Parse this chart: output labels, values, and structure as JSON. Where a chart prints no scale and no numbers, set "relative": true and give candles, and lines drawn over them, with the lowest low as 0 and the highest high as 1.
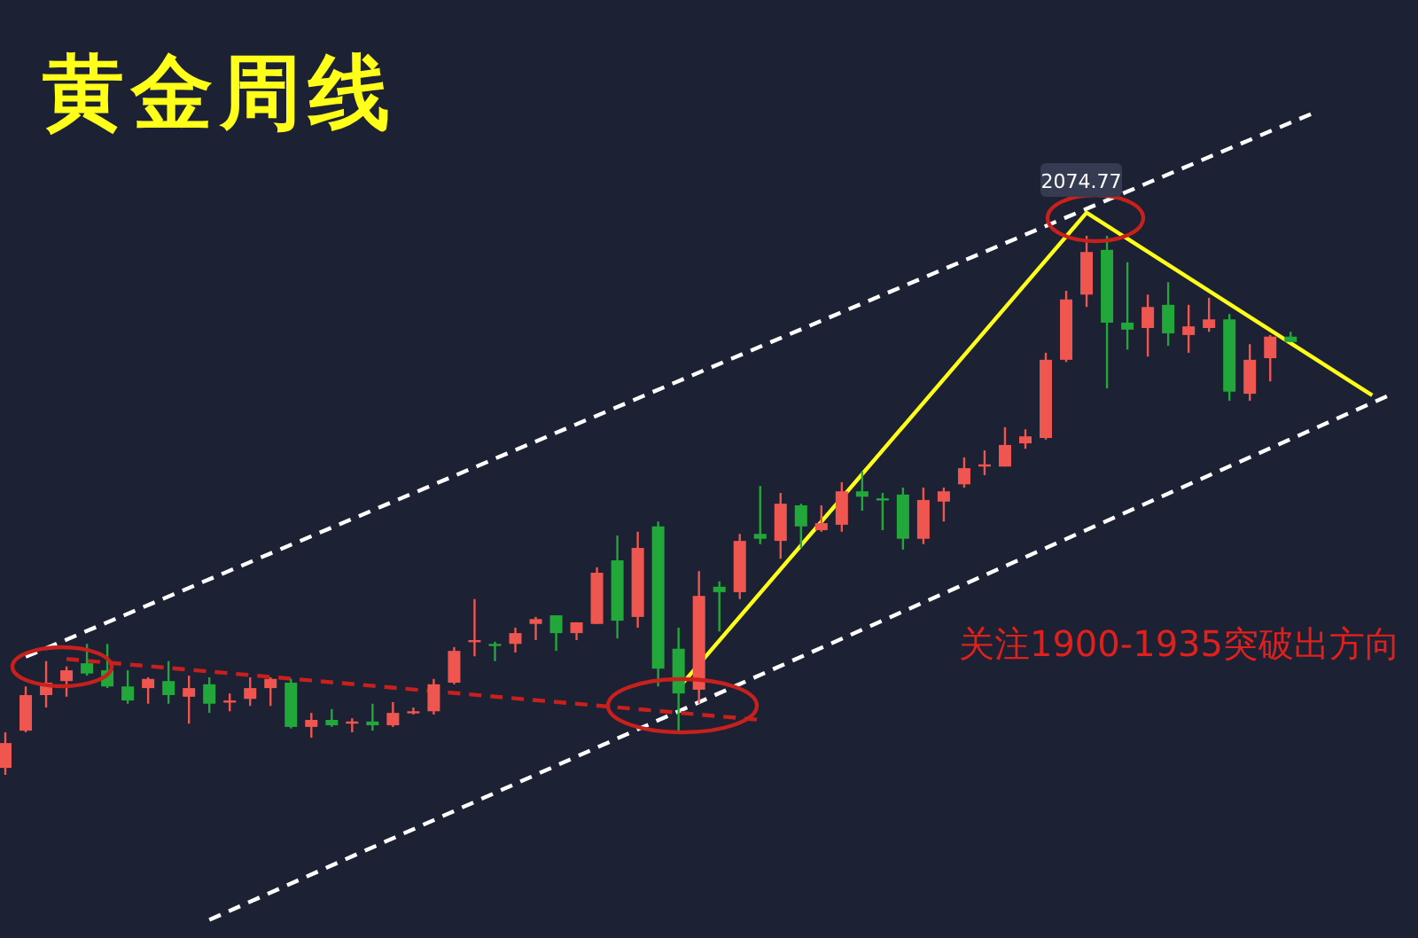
{
  "chart_data": {
    "type": "candlestick",
    "title": "黄金周线",
    "relative": true,
    "categories": [
      null,
      null,
      null,
      null,
      null,
      null,
      null,
      null,
      null,
      null,
      null,
      null,
      null,
      null,
      null,
      null,
      null,
      null,
      null,
      null,
      null,
      null,
      null,
      null,
      null,
      null,
      null,
      null,
      null,
      null,
      null,
      null,
      null,
      null,
      null,
      null,
      null,
      null,
      null,
      null,
      null,
      null,
      null,
      null,
      null,
      null,
      null,
      null,
      null,
      null,
      null,
      null,
      null,
      null,
      null,
      null,
      null,
      null,
      null,
      null,
      null,
      null,
      null,
      null,
      null,
      null,
      null,
      null,
      null
    ],
    "ohlc": [
      [
        0.013,
        0.079,
        0,
        0.059
      ],
      [
        0.082,
        0.164,
        0.079,
        0.148
      ],
      [
        0.148,
        0.211,
        0.125,
        0.171
      ],
      [
        0.174,
        0.201,
        0.145,
        0.194
      ],
      [
        0.207,
        0.243,
        0.184,
        0.188
      ],
      [
        0.194,
        0.243,
        0.161,
        0.164
      ],
      [
        0.164,
        0.194,
        0.132,
        0.138
      ],
      [
        0.161,
        0.181,
        0.132,
        0.178
      ],
      [
        0.174,
        0.211,
        0.132,
        0.148
      ],
      [
        0.145,
        0.184,
        0.095,
        0.161
      ],
      [
        0.168,
        0.181,
        0.115,
        0.132
      ],
      [
        0.135,
        0.151,
        0.118,
        0.138
      ],
      [
        0.141,
        0.181,
        0.128,
        0.161
      ],
      [
        0.161,
        0.181,
        0.128,
        0.178
      ],
      [
        0.171,
        0.178,
        0.086,
        0.089
      ],
      [
        0.089,
        0.115,
        0.069,
        0.102
      ],
      [
        0.102,
        0.122,
        0.089,
        0.092
      ],
      [
        0.095,
        0.105,
        0.079,
        0.099
      ],
      [
        0.099,
        0.132,
        0.082,
        0.092
      ],
      [
        0.092,
        0.135,
        0.089,
        0.115
      ],
      [
        0.115,
        0.125,
        0.112,
        0.118
      ],
      [
        0.118,
        0.178,
        0.112,
        0.168
      ],
      [
        0.171,
        0.237,
        0.168,
        0.23
      ],
      [
        0.247,
        0.326,
        0.22,
        0.25
      ],
      [
        0.243,
        0.247,
        0.211,
        0.24
      ],
      [
        0.243,
        0.273,
        0.227,
        0.263
      ],
      [
        0.28,
        0.293,
        0.25,
        0.289
      ],
      [
        0.296,
        0.296,
        0.23,
        0.263
      ],
      [
        0.263,
        0.283,
        0.25,
        0.283
      ],
      [
        0.28,
        0.385,
        0.28,
        0.375
      ],
      [
        0.398,
        0.444,
        0.253,
        0.286
      ],
      [
        0.293,
        0.451,
        0.273,
        0.421
      ],
      [
        0.461,
        0.47,
        0.164,
        0.197
      ],
      [
        0.234,
        0.273,
        0.079,
        0.151
      ],
      [
        0.158,
        0.378,
        0.132,
        0.332
      ],
      [
        0.349,
        0.359,
        0.266,
        0.339
      ],
      [
        0.339,
        0.447,
        0.326,
        0.434
      ],
      [
        0.447,
        0.536,
        0.428,
        0.438
      ],
      [
        0.434,
        0.523,
        0.401,
        0.503
      ],
      [
        0.5,
        0.503,
        0.421,
        0.461
      ],
      [
        0.454,
        0.5,
        0.451,
        0.467
      ],
      [
        0.464,
        0.543,
        0.451,
        0.526
      ],
      [
        0.526,
        0.563,
        0.49,
        0.516
      ],
      [
        0.513,
        0.523,
        0.454,
        0.51
      ],
      [
        0.52,
        0.533,
        0.418,
        0.438
      ],
      [
        0.438,
        0.533,
        0.428,
        0.51
      ],
      [
        0.507,
        0.533,
        0.47,
        0.526
      ],
      [
        0.539,
        0.589,
        0.533,
        0.569
      ],
      [
        0.572,
        0.602,
        0.556,
        0.576
      ],
      [
        0.572,
        0.645,
        0.572,
        0.612
      ],
      [
        0.615,
        0.641,
        0.605,
        0.628
      ],
      [
        0.625,
        0.783,
        0.622,
        0.77
      ],
      [
        0.77,
        0.898,
        0.766,
        0.882
      ],
      [
        0.891,
        1,
        0.868,
        0.97
      ],
      [
        0.974,
        1,
        0.717,
        0.839
      ],
      [
        0.839,
        0.951,
        0.789,
        0.826
      ],
      [
        0.829,
        0.891,
        0.776,
        0.868
      ],
      [
        0.872,
        0.914,
        0.796,
        0.819
      ],
      [
        0.816,
        0.872,
        0.783,
        0.832
      ],
      [
        0.829,
        0.885,
        0.822,
        0.845
      ],
      [
        0.845,
        0.855,
        0.694,
        0.711
      ],
      [
        0.707,
        0.799,
        0.694,
        0.77
      ],
      [
        0.773,
        0.816,
        0.73,
        0.813
      ],
      [
        0.813,
        0.822,
        0.803,
        0.803
      ],
      null,
      null,
      null,
      null,
      null
    ],
    "colors": [
      "#f05650",
      "#f05650",
      "#f05650",
      "#f05650",
      "#22a83a",
      "#22a83a",
      "#22a83a",
      "#f05650",
      "#22a83a",
      "#f05650",
      "#22a83a",
      "#f05650",
      "#f05650",
      "#f05650",
      "#22a83a",
      "#f05650",
      "#22a83a",
      "#f05650",
      "#22a83a",
      "#f05650",
      "#f05650",
      "#f05650",
      "#f05650",
      "#f05650",
      "#22a83a",
      "#f05650",
      "#f05650",
      "#22a83a",
      "#f05650",
      "#f05650",
      "#22a83a",
      "#f05650",
      "#22a83a",
      "#22a83a",
      "#f05650",
      "#22a83a",
      "#f05650",
      "#22a83a",
      "#f05650",
      "#22a83a",
      "#f05650",
      "#f05650",
      "#22a83a",
      "#22a83a",
      "#22a83a",
      "#f05650",
      "#f05650",
      "#f05650",
      "#f05650",
      "#f05650",
      "#f05650",
      "#f05650",
      "#f05650",
      "#f05650",
      "#22a83a",
      "#22a83a",
      "#f05650",
      "#22a83a",
      "#f05650",
      "#f05650",
      "#22a83a",
      "#f05650",
      "#f05650",
      "#22a83a",
      null,
      null,
      null,
      null,
      null
    ],
    "series": [
      {
        "type": "line",
        "color": "#ffffff",
        "line_style": "dashed",
        "values": [
          null,
          0.219,
          null,
          null,
          null,
          null,
          null,
          null,
          null,
          null,
          null,
          null,
          null,
          null,
          null,
          null,
          null,
          null,
          null,
          null,
          null,
          null,
          null,
          null,
          null,
          null,
          null,
          null,
          null,
          null,
          null,
          null,
          null,
          null,
          null,
          null,
          null,
          null,
          null,
          null,
          null,
          null,
          null,
          null,
          null,
          null,
          null,
          null,
          null,
          null,
          null,
          null,
          null,
          null,
          null,
          null,
          null,
          null,
          null,
          null,
          null,
          null,
          null,
          null,
          1.226,
          null,
          null,
          null,
          null
        ]
      },
      {
        "type": "line",
        "color": "#ffffff",
        "line_style": "dashed",
        "values": [
          null,
          null,
          null,
          null,
          null,
          null,
          null,
          null,
          null,
          null,
          -0.269,
          null,
          null,
          null,
          null,
          null,
          null,
          null,
          null,
          null,
          null,
          null,
          null,
          null,
          null,
          null,
          null,
          null,
          null,
          null,
          null,
          null,
          null,
          null,
          null,
          null,
          null,
          null,
          null,
          null,
          null,
          null,
          null,
          null,
          null,
          null,
          null,
          null,
          null,
          null,
          null,
          null,
          null,
          null,
          null,
          null,
          null,
          null,
          null,
          null,
          null,
          null,
          null,
          null,
          null,
          null,
          null,
          null,
          0.707
        ]
      },
      {
        "type": "line",
        "color": "#c8201c",
        "line_style": "dashed",
        "values": [
          null,
          null,
          null,
          0.215,
          null,
          null,
          null,
          null,
          null,
          null,
          null,
          null,
          null,
          null,
          null,
          null,
          null,
          null,
          null,
          null,
          null,
          null,
          null,
          null,
          null,
          null,
          null,
          null,
          null,
          null,
          null,
          null,
          null,
          null,
          null,
          null,
          null,
          0.102,
          null,
          null,
          null,
          null,
          null,
          null,
          null,
          null,
          null,
          null,
          null,
          null,
          null,
          null,
          null,
          null,
          null,
          null,
          null,
          null,
          null,
          null,
          null,
          null,
          null,
          null,
          null,
          null,
          null,
          null,
          null
        ]
      },
      {
        "type": "line",
        "color": "#ffff1a",
        "line_style": "solid",
        "values": [
          null,
          null,
          null,
          null,
          null,
          null,
          null,
          null,
          null,
          null,
          null,
          null,
          null,
          null,
          null,
          null,
          null,
          null,
          null,
          null,
          null,
          null,
          null,
          null,
          null,
          null,
          null,
          null,
          null,
          null,
          null,
          null,
          null,
          0.161,
          null,
          null,
          null,
          null,
          null,
          null,
          null,
          null,
          null,
          null,
          null,
          null,
          null,
          null,
          null,
          null,
          null,
          null,
          null,
          1.043,
          null,
          null,
          null,
          null,
          null,
          null,
          null,
          null,
          null,
          null,
          null,
          null,
          null,
          0.704,
          null
        ]
      }
    ],
    "annotations": [
      {
        "text": "2074.77",
        "y": 1
      },
      "关注1900-1935突破出方向"
    ]
  }
}
